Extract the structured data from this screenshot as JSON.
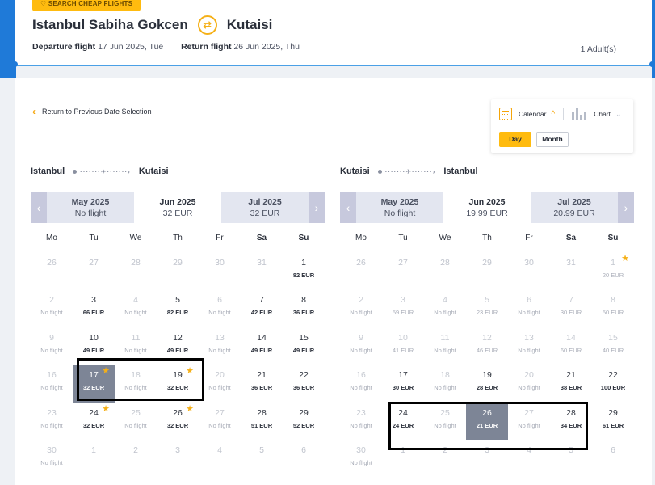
{
  "header": {
    "search_tag": "SEARCH CHEAP FLIGHTS",
    "origin": "Istanbul Sabiha Gokcen",
    "destination": "Kutaisi",
    "departure_label": "Departure flight",
    "departure_value": "17 Jun 2025, Tue",
    "return_label": "Return flight",
    "return_value": "26 Jun 2025, Thu",
    "passengers": "1 Adult(s)"
  },
  "back_link": "Return to Previous Date Selection",
  "view_toggle": {
    "calendar": "Calendar",
    "chart": "Chart",
    "day": "Day",
    "month": "Month",
    "active_view": "Calendar",
    "active_mode": "Day"
  },
  "weekdays": [
    "Mo",
    "Tu",
    "We",
    "Th",
    "Fr",
    "Sa",
    "Su"
  ],
  "calendars": [
    {
      "from": "Istanbul",
      "to": "Kutaisi",
      "months": [
        {
          "name": "May 2025",
          "price": "No flight"
        },
        {
          "name": "Jun 2025",
          "price": "32 EUR"
        },
        {
          "name": "Jul 2025",
          "price": "32 EUR"
        }
      ],
      "weeks": [
        [
          {
            "d": "26",
            "p": "",
            "s": "off"
          },
          {
            "d": "27",
            "p": "",
            "s": "off"
          },
          {
            "d": "28",
            "p": "",
            "s": "off"
          },
          {
            "d": "29",
            "p": "",
            "s": "off"
          },
          {
            "d": "30",
            "p": "",
            "s": "off"
          },
          {
            "d": "31",
            "p": "",
            "s": "off"
          },
          {
            "d": "1",
            "p": "82 EUR",
            "s": ""
          }
        ],
        [
          {
            "d": "2",
            "p": "No flight",
            "s": "nf"
          },
          {
            "d": "3",
            "p": "66 EUR",
            "s": ""
          },
          {
            "d": "4",
            "p": "No flight",
            "s": "nf"
          },
          {
            "d": "5",
            "p": "82 EUR",
            "s": ""
          },
          {
            "d": "6",
            "p": "No flight",
            "s": "nf"
          },
          {
            "d": "7",
            "p": "42 EUR",
            "s": ""
          },
          {
            "d": "8",
            "p": "36 EUR",
            "s": ""
          }
        ],
        [
          {
            "d": "9",
            "p": "No flight",
            "s": "nf"
          },
          {
            "d": "10",
            "p": "49 EUR",
            "s": ""
          },
          {
            "d": "11",
            "p": "No flight",
            "s": "nf"
          },
          {
            "d": "12",
            "p": "49 EUR",
            "s": ""
          },
          {
            "d": "13",
            "p": "No flight",
            "s": "nf"
          },
          {
            "d": "14",
            "p": "49 EUR",
            "s": ""
          },
          {
            "d": "15",
            "p": "49 EUR",
            "s": ""
          }
        ],
        [
          {
            "d": "16",
            "p": "No flight",
            "s": "nf"
          },
          {
            "d": "17",
            "p": "32 EUR",
            "s": "sel",
            "star": true
          },
          {
            "d": "18",
            "p": "No flight",
            "s": "nf"
          },
          {
            "d": "19",
            "p": "32 EUR",
            "s": "",
            "star": true
          },
          {
            "d": "20",
            "p": "No flight",
            "s": "nf"
          },
          {
            "d": "21",
            "p": "36 EUR",
            "s": ""
          },
          {
            "d": "22",
            "p": "36 EUR",
            "s": ""
          }
        ],
        [
          {
            "d": "23",
            "p": "No flight",
            "s": "nf"
          },
          {
            "d": "24",
            "p": "32 EUR",
            "s": "",
            "star": true
          },
          {
            "d": "25",
            "p": "No flight",
            "s": "nf"
          },
          {
            "d": "26",
            "p": "32 EUR",
            "s": "",
            "star": true
          },
          {
            "d": "27",
            "p": "No flight",
            "s": "nf"
          },
          {
            "d": "28",
            "p": "51 EUR",
            "s": ""
          },
          {
            "d": "29",
            "p": "52 EUR",
            "s": ""
          }
        ],
        [
          {
            "d": "30",
            "p": "No flight",
            "s": "nf"
          },
          {
            "d": "1",
            "p": "",
            "s": "off"
          },
          {
            "d": "2",
            "p": "",
            "s": "off"
          },
          {
            "d": "3",
            "p": "",
            "s": "off"
          },
          {
            "d": "4",
            "p": "",
            "s": "off"
          },
          {
            "d": "5",
            "p": "",
            "s": "off"
          },
          {
            "d": "6",
            "p": "",
            "s": "off"
          }
        ]
      ]
    },
    {
      "from": "Kutaisi",
      "to": "Istanbul",
      "months": [
        {
          "name": "May 2025",
          "price": "No flight"
        },
        {
          "name": "Jun 2025",
          "price": "19.99 EUR"
        },
        {
          "name": "Jul 2025",
          "price": "20.99 EUR"
        }
      ],
      "weeks": [
        [
          {
            "d": "26",
            "p": "",
            "s": "off"
          },
          {
            "d": "27",
            "p": "",
            "s": "off"
          },
          {
            "d": "28",
            "p": "",
            "s": "off"
          },
          {
            "d": "29",
            "p": "",
            "s": "off"
          },
          {
            "d": "30",
            "p": "",
            "s": "off"
          },
          {
            "d": "31",
            "p": "",
            "s": "off"
          },
          {
            "d": "1",
            "p": "20 EUR",
            "s": "nf",
            "star": true
          }
        ],
        [
          {
            "d": "2",
            "p": "No flight",
            "s": "nf"
          },
          {
            "d": "3",
            "p": "59 EUR",
            "s": "nf"
          },
          {
            "d": "4",
            "p": "No flight",
            "s": "nf"
          },
          {
            "d": "5",
            "p": "23 EUR",
            "s": "nf"
          },
          {
            "d": "6",
            "p": "No flight",
            "s": "nf"
          },
          {
            "d": "7",
            "p": "30 EUR",
            "s": "nf"
          },
          {
            "d": "8",
            "p": "50 EUR",
            "s": "nf"
          }
        ],
        [
          {
            "d": "9",
            "p": "No flight",
            "s": "nf"
          },
          {
            "d": "10",
            "p": "41 EUR",
            "s": "nf"
          },
          {
            "d": "11",
            "p": "No flight",
            "s": "nf"
          },
          {
            "d": "12",
            "p": "46 EUR",
            "s": "nf"
          },
          {
            "d": "13",
            "p": "No flight",
            "s": "nf"
          },
          {
            "d": "14",
            "p": "60 EUR",
            "s": "nf"
          },
          {
            "d": "15",
            "p": "40 EUR",
            "s": "nf"
          }
        ],
        [
          {
            "d": "16",
            "p": "No flight",
            "s": "nf"
          },
          {
            "d": "17",
            "p": "30 EUR",
            "s": ""
          },
          {
            "d": "18",
            "p": "No flight",
            "s": "nf"
          },
          {
            "d": "19",
            "p": "28 EUR",
            "s": ""
          },
          {
            "d": "20",
            "p": "No flight",
            "s": "nf"
          },
          {
            "d": "21",
            "p": "38 EUR",
            "s": ""
          },
          {
            "d": "22",
            "p": "100 EUR",
            "s": ""
          }
        ],
        [
          {
            "d": "23",
            "p": "No flight",
            "s": "nf"
          },
          {
            "d": "24",
            "p": "24 EUR",
            "s": ""
          },
          {
            "d": "25",
            "p": "No flight",
            "s": "nf"
          },
          {
            "d": "26",
            "p": "21 EUR",
            "s": "sel"
          },
          {
            "d": "27",
            "p": "No flight",
            "s": "nf"
          },
          {
            "d": "28",
            "p": "34 EUR",
            "s": ""
          },
          {
            "d": "29",
            "p": "61 EUR",
            "s": ""
          }
        ],
        [
          {
            "d": "30",
            "p": "No flight",
            "s": "nf"
          },
          {
            "d": "1",
            "p": "",
            "s": "off"
          },
          {
            "d": "2",
            "p": "",
            "s": "off"
          },
          {
            "d": "3",
            "p": "",
            "s": "off"
          },
          {
            "d": "4",
            "p": "",
            "s": "off"
          },
          {
            "d": "5",
            "p": "",
            "s": "off"
          },
          {
            "d": "6",
            "p": "",
            "s": "off"
          }
        ]
      ]
    }
  ],
  "colors": {
    "accent": "#ffbb0f",
    "brand_blue": "#1f7ad8",
    "selected_day": "#7d8596",
    "star": "#f5b017"
  }
}
